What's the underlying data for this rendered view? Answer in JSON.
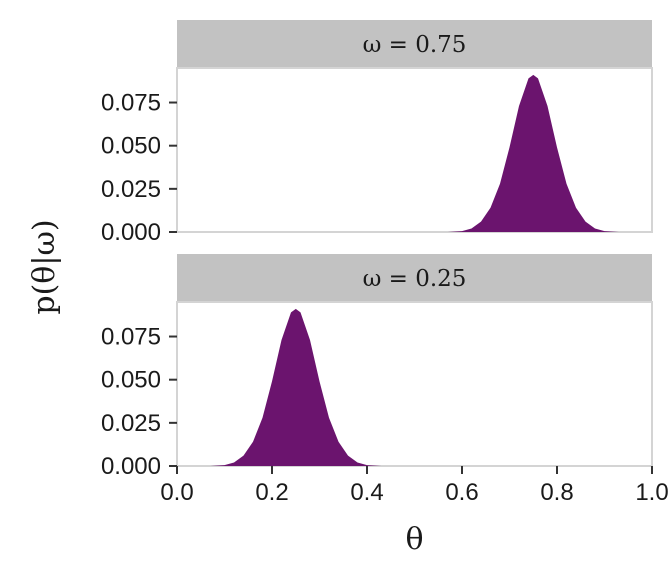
{
  "chart_data": {
    "type": "area",
    "xlabel": "θ",
    "ylabel": "p(θ|ω)",
    "xlim": [
      0,
      1
    ],
    "ylim": [
      0,
      0.095
    ],
    "x_ticks": [
      0.0,
      0.2,
      0.4,
      0.6,
      0.8,
      1.0
    ],
    "x_tick_labels": [
      "0.0",
      "0.2",
      "0.4",
      "0.6",
      "0.8",
      "1.0"
    ],
    "y_ticks": [
      0,
      0.025,
      0.05,
      0.075
    ],
    "y_tick_labels": [
      "0.000",
      "0.025",
      "0.050",
      "0.075"
    ],
    "grid": false,
    "facets": [
      {
        "strip_label": "ω = 0.75",
        "fill_color": "#6b146e",
        "x": [
          0.57,
          0.6,
          0.62,
          0.64,
          0.66,
          0.68,
          0.7,
          0.72,
          0.74,
          0.75,
          0.76,
          0.78,
          0.8,
          0.82,
          0.84,
          0.86,
          0.88,
          0.9,
          0.93
        ],
        "y": [
          0.0,
          0.0005,
          0.002,
          0.006,
          0.014,
          0.028,
          0.049,
          0.073,
          0.089,
          0.091,
          0.089,
          0.073,
          0.049,
          0.028,
          0.014,
          0.006,
          0.002,
          0.0005,
          0.0
        ]
      },
      {
        "strip_label": "ω = 0.25",
        "fill_color": "#6b146e",
        "x": [
          0.07,
          0.1,
          0.12,
          0.14,
          0.16,
          0.18,
          0.2,
          0.22,
          0.24,
          0.25,
          0.26,
          0.28,
          0.3,
          0.32,
          0.34,
          0.36,
          0.38,
          0.4,
          0.43
        ],
        "y": [
          0.0,
          0.0005,
          0.002,
          0.006,
          0.014,
          0.028,
          0.049,
          0.073,
          0.089,
          0.091,
          0.089,
          0.073,
          0.049,
          0.028,
          0.014,
          0.006,
          0.002,
          0.0005,
          0.0
        ]
      }
    ]
  }
}
